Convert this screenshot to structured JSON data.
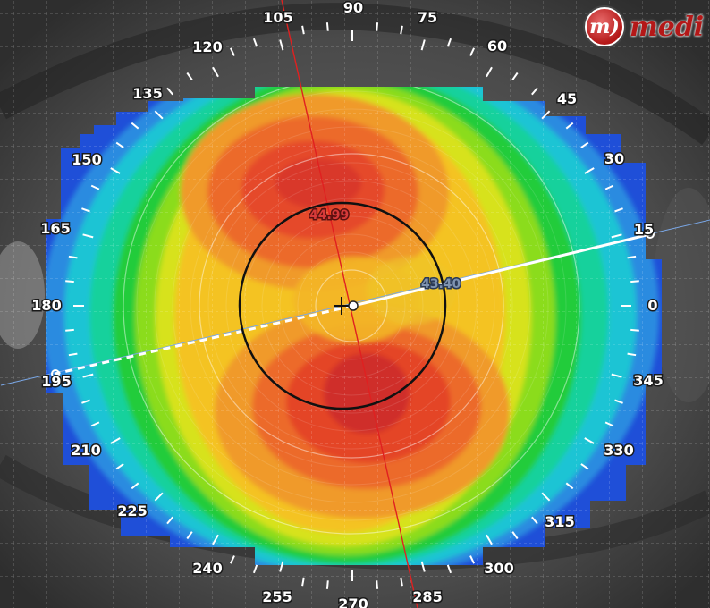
{
  "brand": {
    "badge": "m)",
    "name": "medi"
  },
  "axis_labels": {
    "a0": "0",
    "a15": "15",
    "a30": "30",
    "a45": "45",
    "a60": "60",
    "a75": "75",
    "a90": "90",
    "a105": "105",
    "a120": "120",
    "a135": "135",
    "a150": "150",
    "a165": "165",
    "a180": "180",
    "a195": "195",
    "a210": "210",
    "a225": "225",
    "a240": "240",
    "a255": "255",
    "a270": "270",
    "a285": "285",
    "a300": "300",
    "a315": "315",
    "a330": "330",
    "a345": "345"
  },
  "readings": {
    "steep_k": "44.99",
    "flat_k": "43.40"
  },
  "colors": {
    "steep_meridian": "#e02020",
    "flat_meridian": "#ffffff",
    "steep_label": "#d63a3a",
    "flat_label": "#7f93b0"
  }
}
